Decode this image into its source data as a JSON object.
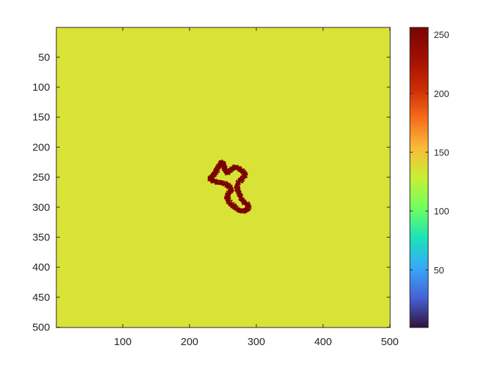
{
  "chart_data": {
    "type": "heatmap",
    "title": "",
    "xlabel": "",
    "ylabel": "",
    "xlim": [
      0.5,
      500.5
    ],
    "ylim": [
      0.5,
      500.5
    ],
    "y_direction": "reversed",
    "x_ticks": [
      100,
      200,
      300,
      400,
      500
    ],
    "y_ticks": [
      50,
      100,
      150,
      200,
      250,
      300,
      350,
      400,
      450,
      500
    ],
    "colormap": "turbo",
    "colorbar": {
      "range": [
        1,
        256
      ],
      "ticks": [
        50,
        100,
        150,
        200,
        250
      ]
    },
    "background_value": 152,
    "background_color": "#d9e236",
    "cluster_value": 256,
    "cluster_color": "#7a0403",
    "cluster_region": {
      "x_range": [
        229,
        289
      ],
      "y_range": [
        222,
        308
      ]
    },
    "cluster_outline_points": [
      [
        232,
        250
      ],
      [
        236,
        244
      ],
      [
        240,
        238
      ],
      [
        243,
        230
      ],
      [
        247,
        224
      ],
      [
        250,
        228
      ],
      [
        252,
        236
      ],
      [
        256,
        242
      ],
      [
        262,
        236
      ],
      [
        268,
        232
      ],
      [
        274,
        236
      ],
      [
        280,
        240
      ],
      [
        283,
        246
      ],
      [
        278,
        252
      ],
      [
        272,
        258
      ],
      [
        270,
        266
      ],
      [
        272,
        274
      ],
      [
        276,
        282
      ],
      [
        280,
        290
      ],
      [
        286,
        294
      ],
      [
        288,
        300
      ],
      [
        284,
        304
      ],
      [
        278,
        306
      ],
      [
        270,
        302
      ],
      [
        264,
        296
      ],
      [
        258,
        290
      ],
      [
        255,
        282
      ],
      [
        258,
        276
      ],
      [
        262,
        270
      ],
      [
        258,
        264
      ],
      [
        252,
        260
      ],
      [
        244,
        258
      ],
      [
        236,
        256
      ],
      [
        230,
        252
      ]
    ]
  }
}
